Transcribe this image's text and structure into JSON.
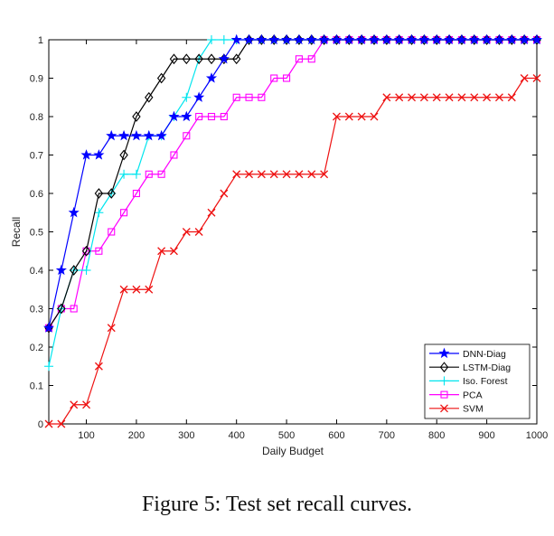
{
  "caption": "Figure 5: Test set recall curves.",
  "chart_data": {
    "type": "line",
    "title": "",
    "xlabel": "Daily Budget",
    "ylabel": "Recall",
    "xlim": [
      25,
      1000
    ],
    "ylim": [
      0,
      1
    ],
    "grid": false,
    "legend": "bottom-right",
    "x": [
      25,
      50,
      75,
      100,
      125,
      150,
      175,
      200,
      225,
      250,
      275,
      300,
      325,
      350,
      375,
      400,
      425,
      450,
      475,
      500,
      525,
      550,
      575,
      600,
      625,
      650,
      675,
      700,
      725,
      750,
      775,
      800,
      825,
      850,
      875,
      900,
      925,
      950,
      975,
      1000
    ],
    "x_ticks": [
      "100",
      "200",
      "300",
      "400",
      "500",
      "600",
      "700",
      "800",
      "900",
      "1000"
    ],
    "y_ticks": [
      "0",
      "0.1",
      "0.2",
      "0.3",
      "0.4",
      "0.5",
      "0.6",
      "0.7",
      "0.8",
      "0.9",
      "1"
    ],
    "series": [
      {
        "name": "DNN-Diag",
        "color": "#0000ff",
        "marker": "star",
        "values": [
          0.25,
          0.4,
          0.55,
          0.7,
          0.7,
          0.75,
          0.75,
          0.75,
          0.75,
          0.75,
          0.8,
          0.8,
          0.85,
          0.9,
          0.95,
          1,
          1,
          1,
          1,
          1,
          1,
          1,
          1,
          1,
          1,
          1,
          1,
          1,
          1,
          1,
          1,
          1,
          1,
          1,
          1,
          1,
          1,
          1,
          1,
          1
        ]
      },
      {
        "name": "LSTM-Diag",
        "color": "#000000",
        "marker": "diamond",
        "values": [
          0.25,
          0.3,
          0.4,
          0.45,
          0.6,
          0.6,
          0.7,
          0.8,
          0.85,
          0.9,
          0.95,
          0.95,
          0.95,
          0.95,
          0.95,
          0.95,
          1,
          1,
          1,
          1,
          1,
          1,
          1,
          1,
          1,
          1,
          1,
          1,
          1,
          1,
          1,
          1,
          1,
          1,
          1,
          1,
          1,
          1,
          1,
          1
        ]
      },
      {
        "name": "Iso. Forest",
        "color": "#00e5ee",
        "marker": "plus",
        "values": [
          0.15,
          0.3,
          0.4,
          0.4,
          0.55,
          0.6,
          0.65,
          0.65,
          0.75,
          0.75,
          0.8,
          0.85,
          0.95,
          1,
          1,
          1,
          1,
          1,
          1,
          1,
          1,
          1,
          1,
          1,
          1,
          1,
          1,
          1,
          1,
          1,
          1,
          1,
          1,
          1,
          1,
          1,
          1,
          1,
          1,
          1
        ]
      },
      {
        "name": "PCA",
        "color": "#ff00ff",
        "marker": "square",
        "values": [
          0.25,
          0.3,
          0.3,
          0.45,
          0.45,
          0.5,
          0.55,
          0.6,
          0.65,
          0.65,
          0.7,
          0.75,
          0.8,
          0.8,
          0.8,
          0.85,
          0.85,
          0.85,
          0.9,
          0.9,
          0.95,
          0.95,
          1,
          1,
          1,
          1,
          1,
          1,
          1,
          1,
          1,
          1,
          1,
          1,
          1,
          1,
          1,
          1,
          1,
          1
        ]
      },
      {
        "name": "SVM",
        "color": "#ee1111",
        "marker": "x",
        "values": [
          0,
          0,
          0.05,
          0.05,
          0.15,
          0.25,
          0.35,
          0.35,
          0.35,
          0.45,
          0.45,
          0.5,
          0.5,
          0.55,
          0.6,
          0.65,
          0.65,
          0.65,
          0.65,
          0.65,
          0.65,
          0.65,
          0.65,
          0.8,
          0.8,
          0.8,
          0.8,
          0.85,
          0.85,
          0.85,
          0.85,
          0.85,
          0.85,
          0.85,
          0.85,
          0.85,
          0.85,
          0.85,
          0.9,
          0.9
        ]
      }
    ]
  }
}
